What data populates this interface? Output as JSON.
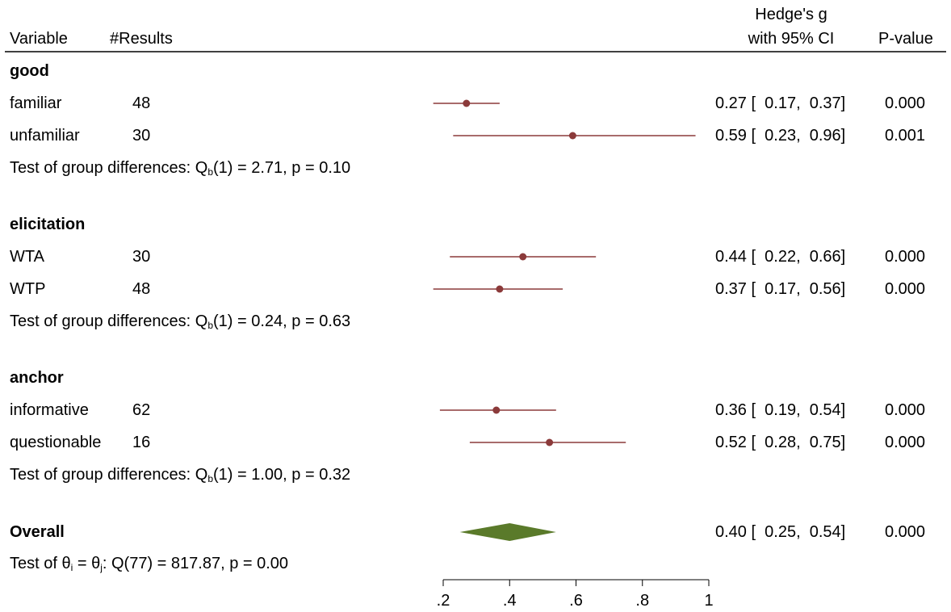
{
  "header": {
    "variable": "Variable",
    "results": "#Results",
    "effect_line1": "Hedge's g",
    "effect_line2": "with 95% CI",
    "pvalue": "P-value"
  },
  "chart_data": {
    "type": "forest",
    "x_ticks": [
      0.2,
      0.4,
      0.6,
      0.8,
      1
    ],
    "x_tick_labels": [
      ".2",
      ".4",
      ".6",
      ".8",
      "1"
    ],
    "xlim": [
      0.2,
      1.0
    ],
    "marker_color": "#8b3a3a",
    "diamond_color": "#5a7a2a",
    "groups": [
      {
        "label": "good",
        "rows": [
          {
            "name": "familiar",
            "n": "48",
            "est": 0.27,
            "lo": 0.17,
            "hi": 0.37,
            "ci_text": "0.27 [  0.17,  0.37]",
            "p": "0.000"
          },
          {
            "name": "unfamiliar",
            "n": "30",
            "est": 0.59,
            "lo": 0.23,
            "hi": 0.96,
            "ci_text": "0.59 [  0.23,  0.96]",
            "p": "0.001"
          }
        ],
        "test_prefix": "Test of group differences: Q",
        "test_sub": "b",
        "test_suffix": "(1) = 2.71, p = 0.10"
      },
      {
        "label": "elicitation",
        "rows": [
          {
            "name": "WTA",
            "n": "30",
            "est": 0.44,
            "lo": 0.22,
            "hi": 0.66,
            "ci_text": "0.44 [  0.22,  0.66]",
            "p": "0.000"
          },
          {
            "name": "WTP",
            "n": "48",
            "est": 0.37,
            "lo": 0.17,
            "hi": 0.56,
            "ci_text": "0.37 [  0.17,  0.56]",
            "p": "0.000"
          }
        ],
        "test_prefix": "Test of group differences: Q",
        "test_sub": "b",
        "test_suffix": "(1) = 0.24, p = 0.63"
      },
      {
        "label": "anchor",
        "rows": [
          {
            "name": "informative",
            "n": "62",
            "est": 0.36,
            "lo": 0.19,
            "hi": 0.54,
            "ci_text": "0.36 [  0.19,  0.54]",
            "p": "0.000"
          },
          {
            "name": "questionable",
            "n": "16",
            "est": 0.52,
            "lo": 0.28,
            "hi": 0.75,
            "ci_text": "0.52 [  0.28,  0.75]",
            "p": "0.000"
          }
        ],
        "test_prefix": "Test of group differences: Q",
        "test_sub": "b",
        "test_suffix": "(1) = 1.00, p = 0.32"
      }
    ],
    "overall": {
      "label": "Overall",
      "est": 0.4,
      "lo": 0.25,
      "hi": 0.54,
      "ci_text": "0.40 [  0.25,  0.54]",
      "p": "0.000",
      "het_prefix": "Test of θ",
      "het_sub1": "i",
      "het_mid": " = θ",
      "het_sub2": "j",
      "het_suffix": ": Q(77) = 817.87, p = 0.00"
    }
  }
}
